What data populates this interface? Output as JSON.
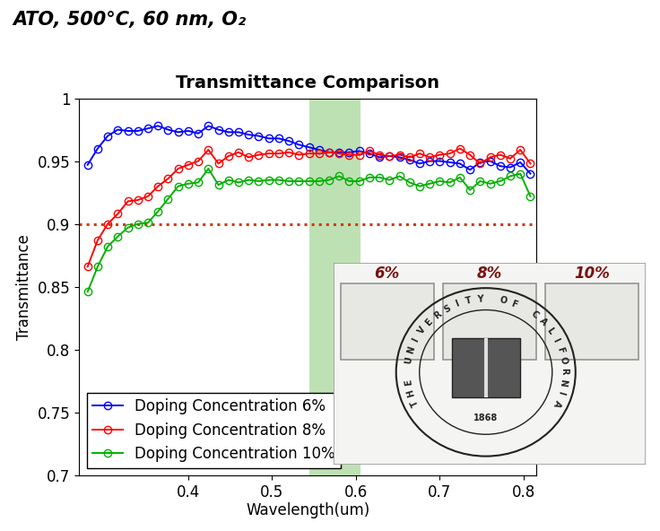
{
  "chart_data": {
    "type": "line",
    "header": "ATO, 500°C, 60 nm, O₂",
    "title": "Transmittance Comparison",
    "x_label": "Wavelength(um)",
    "y_label": "Transmittance",
    "x": [
      0.28,
      0.292,
      0.304,
      0.316,
      0.328,
      0.34,
      0.352,
      0.364,
      0.376,
      0.388,
      0.4,
      0.412,
      0.424,
      0.436,
      0.448,
      0.46,
      0.472,
      0.484,
      0.496,
      0.508,
      0.52,
      0.532,
      0.544,
      0.556,
      0.568,
      0.58,
      0.592,
      0.604,
      0.616,
      0.628,
      0.64,
      0.652,
      0.664,
      0.676,
      0.688,
      0.7,
      0.712,
      0.724,
      0.736,
      0.748,
      0.76,
      0.772,
      0.784,
      0.796,
      0.808
    ],
    "series": [
      {
        "name": "Doping Concentration 6%",
        "color": "#0000ff",
        "marker": "circle",
        "line_style": "solid",
        "values": [
          0.947,
          0.96,
          0.97,
          0.975,
          0.974,
          0.974,
          0.976,
          0.978,
          0.975,
          0.973,
          0.974,
          0.972,
          0.978,
          0.975,
          0.973,
          0.973,
          0.971,
          0.97,
          0.968,
          0.968,
          0.966,
          0.963,
          0.961,
          0.959,
          0.957,
          0.957,
          0.957,
          0.958,
          0.956,
          0.953,
          0.954,
          0.953,
          0.951,
          0.948,
          0.95,
          0.95,
          0.949,
          0.948,
          0.943,
          0.949,
          0.95,
          0.946,
          0.945,
          0.949,
          0.94
        ]
      },
      {
        "name": "Doping Concentration 8%",
        "color": "#ff0000",
        "marker": "circle",
        "line_style": "solid",
        "values": [
          0.866,
          0.887,
          0.9,
          0.908,
          0.918,
          0.919,
          0.922,
          0.93,
          0.936,
          0.944,
          0.947,
          0.95,
          0.959,
          0.948,
          0.954,
          0.957,
          0.953,
          0.955,
          0.956,
          0.956,
          0.957,
          0.955,
          0.956,
          0.956,
          0.957,
          0.956,
          0.955,
          0.955,
          0.958,
          0.955,
          0.954,
          0.955,
          0.953,
          0.956,
          0.953,
          0.955,
          0.956,
          0.96,
          0.955,
          0.948,
          0.953,
          0.955,
          0.952,
          0.959,
          0.948
        ]
      },
      {
        "name": "Doping Concentration 10%",
        "color": "#00b000",
        "marker": "circle",
        "line_style": "solid",
        "values": [
          0.846,
          0.866,
          0.882,
          0.89,
          0.897,
          0.9,
          0.901,
          0.91,
          0.92,
          0.93,
          0.932,
          0.933,
          0.944,
          0.931,
          0.935,
          0.933,
          0.935,
          0.934,
          0.935,
          0.935,
          0.934,
          0.934,
          0.934,
          0.934,
          0.935,
          0.938,
          0.934,
          0.934,
          0.937,
          0.937,
          0.935,
          0.938,
          0.933,
          0.93,
          0.932,
          0.934,
          0.933,
          0.937,
          0.927,
          0.934,
          0.932,
          0.934,
          0.938,
          0.94,
          0.922
        ]
      }
    ],
    "xlim": [
      0.27,
      0.815
    ],
    "xticks": [
      0.4,
      0.5,
      0.6,
      0.7,
      0.8
    ],
    "ylim": [
      0.7,
      1
    ],
    "yticks": [
      0.7,
      0.75,
      0.8,
      0.85,
      0.9,
      0.95,
      1
    ],
    "highlight_band": [
      0.545,
      0.605
    ],
    "reference_line": 0.9,
    "grid": false,
    "legend": "lower left",
    "inset": {
      "labels": [
        "6%",
        "8%",
        "10%"
      ],
      "seal_text": "THE UNIVERSITY OF CALIFORNIA",
      "seal_year": "1868"
    }
  }
}
